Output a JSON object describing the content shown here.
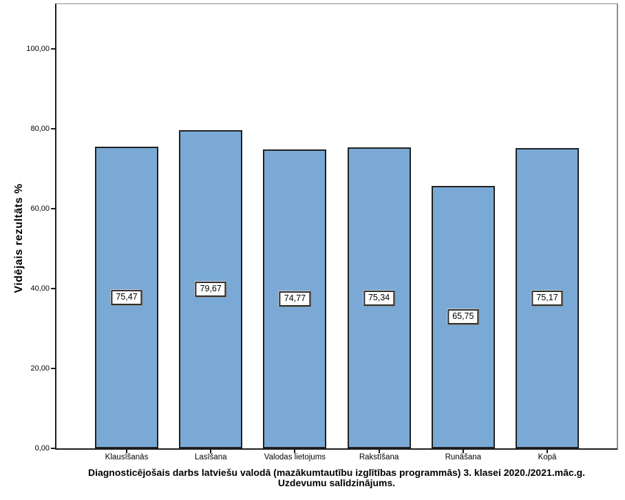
{
  "chart_data": {
    "type": "bar",
    "categories": [
      "Klausīšanās",
      "Lasīšana",
      "Valodas lietojums",
      "Rakstīšana",
      "Runāšana",
      "Kopā"
    ],
    "values": [
      75.47,
      79.67,
      74.77,
      75.34,
      65.75,
      75.17
    ],
    "value_labels": [
      "75,47",
      "79,67",
      "74,77",
      "75,34",
      "65,75",
      "75,17"
    ],
    "title_line1": "Diagnosticējošais darbs latviešu valodā (mazākumtautību izglītības programmās) 3. klasei 2020./2021.māc.g.",
    "title_line2": "Uzdevumu salīdzinājums.",
    "xlabel": "",
    "ylabel": "Vidējais rezultāts %",
    "ylim": [
      0,
      111.2
    ],
    "yticks": [
      {
        "value": 0,
        "label": "0,00"
      },
      {
        "value": 20,
        "label": "20,00"
      },
      {
        "value": 40,
        "label": "40,00"
      },
      {
        "value": 60,
        "label": "60,00"
      },
      {
        "value": 80,
        "label": "80,00"
      },
      {
        "value": 100,
        "label": "100,00"
      }
    ],
    "grid": false,
    "legend_position": "none",
    "colors": {
      "bar_fill": "#7aa9d6",
      "bar_border": "#1f1f1f",
      "axis": "#1a1a1a",
      "frame": "#8c8c8c",
      "background": "#ffffff"
    }
  }
}
